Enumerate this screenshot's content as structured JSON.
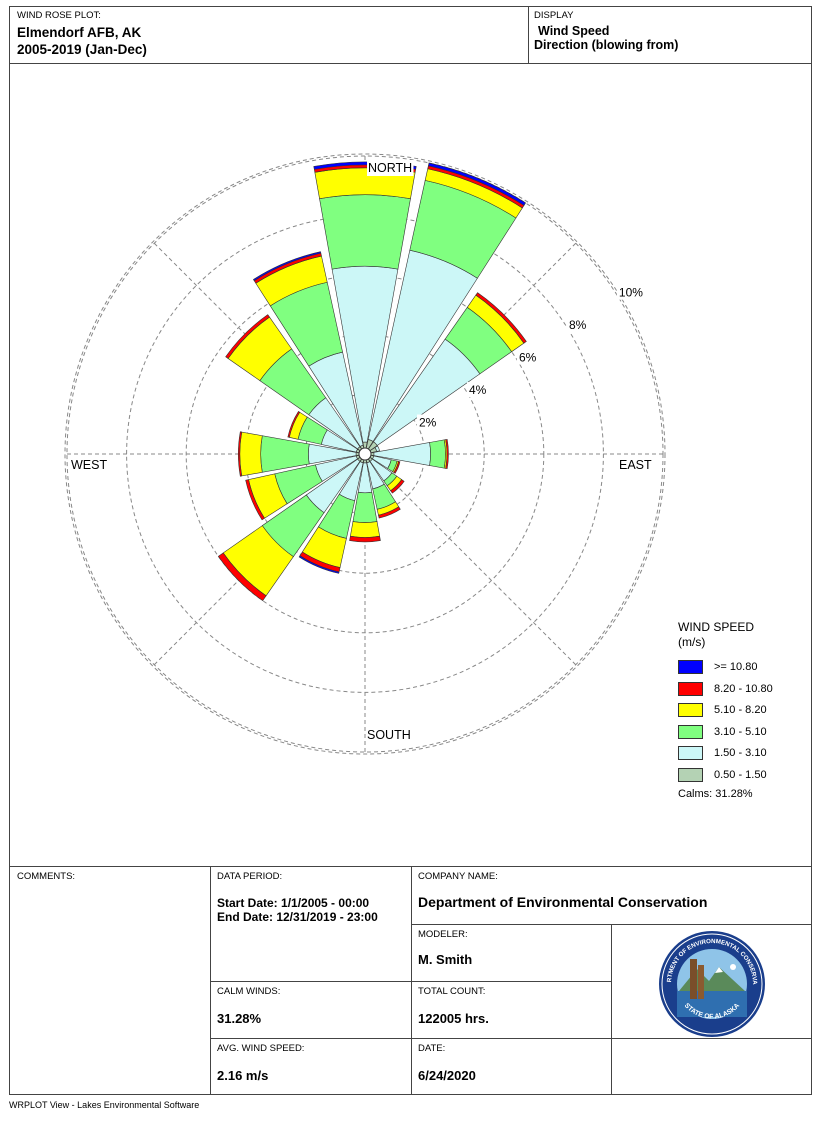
{
  "header": {
    "plot_label": "WIND ROSE PLOT:",
    "station": "Elmendorf AFB, AK",
    "period": "2005-2019 (Jan-Dec)",
    "display_label": "DISPLAY",
    "display_value1": "Wind Speed",
    "display_value2": "Direction (blowing from)"
  },
  "colors": {
    "c1": "#b4d2b4",
    "c2": "#ccf7f7",
    "c3": "#80ff80",
    "c4": "#ffff00",
    "c5": "#ff0000",
    "c6": "#0000ff"
  },
  "chart_data": {
    "type": "wind-rose",
    "units": "% frequency",
    "direction_labels": {
      "north": "NORTH",
      "east": "EAST",
      "south": "SOUTH",
      "west": "WEST"
    },
    "ring_labels": [
      "2%",
      "4%",
      "6%",
      "8%",
      "10%"
    ],
    "ring_values": [
      2,
      4,
      6,
      8,
      10
    ],
    "sectors": [
      {
        "dir": "N",
        "c1": 0.2,
        "c2": 5.9,
        "c3": 2.4,
        "c4": 0.9,
        "c5": 0.1,
        "c6": 0.1
      },
      {
        "dir": "NNE",
        "c1": 0.3,
        "c2": 6.5,
        "c3": 2.4,
        "c4": 0.4,
        "c5": 0.1,
        "c6": 0.1
      },
      {
        "dir": "NE",
        "c1": 0.3,
        "c2": 4.2,
        "c3": 1.3,
        "c4": 0.5,
        "c5": 0.1,
        "c6": 0.0
      },
      {
        "dir": "ENE",
        "c1": 0.2,
        "c2": 0.1,
        "c3": 0.0,
        "c4": 0.0,
        "c5": 0.0,
        "c6": 0.0
      },
      {
        "dir": "E",
        "c1": 0.1,
        "c2": 1.9,
        "c3": 0.5,
        "c4": 0.05,
        "c5": 0.05,
        "c6": 0.0
      },
      {
        "dir": "ESE",
        "c1": 0.1,
        "c2": 0.6,
        "c3": 0.2,
        "c4": 0.05,
        "c5": 0.05,
        "c6": 0.0
      },
      {
        "dir": "SE",
        "c1": 0.1,
        "c2": 0.8,
        "c3": 0.2,
        "c4": 0.2,
        "c5": 0.1,
        "c6": 0.0
      },
      {
        "dir": "SSE",
        "c1": 0.1,
        "c2": 0.9,
        "c3": 0.7,
        "c4": 0.2,
        "c5": 0.1,
        "c6": 0.0
      },
      {
        "dir": "S",
        "c1": 0.1,
        "c2": 1.0,
        "c3": 1.0,
        "c4": 0.5,
        "c5": 0.15,
        "c6": 0.0
      },
      {
        "dir": "SSW",
        "c1": 0.1,
        "c2": 1.3,
        "c3": 1.3,
        "c4": 1.0,
        "c5": 0.15,
        "c6": 0.05
      },
      {
        "dir": "SW",
        "c1": 0.1,
        "c2": 2.1,
        "c3": 1.8,
        "c4": 1.6,
        "c5": 0.2,
        "c6": 0.0
      },
      {
        "dir": "WSW",
        "c1": 0.1,
        "c2": 1.4,
        "c3": 1.4,
        "c4": 0.9,
        "c5": 0.1,
        "c6": 0.0
      },
      {
        "dir": "W",
        "c1": 0.1,
        "c2": 1.6,
        "c3": 1.6,
        "c4": 0.7,
        "c5": 0.05,
        "c6": 0.0
      },
      {
        "dir": "WNW",
        "c1": 0.1,
        "c2": 1.2,
        "c3": 0.8,
        "c4": 0.3,
        "c5": 0.05,
        "c6": 0.0
      },
      {
        "dir": "NW",
        "c1": 0.1,
        "c2": 2.0,
        "c3": 2.0,
        "c4": 1.3,
        "c5": 0.1,
        "c6": 0.0
      },
      {
        "dir": "NNW",
        "c1": 0.1,
        "c2": 3.2,
        "c3": 2.4,
        "c4": 0.9,
        "c5": 0.1,
        "c6": 0.05
      }
    ]
  },
  "legend": {
    "title1": "WIND SPEED",
    "title2": "(m/s)",
    "items": [
      {
        "label": ">= 10.80",
        "key": "c6"
      },
      {
        "label": "8.20 - 10.80",
        "key": "c5"
      },
      {
        "label": "5.10 - 8.20",
        "key": "c4"
      },
      {
        "label": "3.10 - 5.10",
        "key": "c3"
      },
      {
        "label": "1.50 - 3.10",
        "key": "c2"
      },
      {
        "label": "0.50 - 1.50",
        "key": "c1"
      }
    ],
    "calms": "Calms: 31.28%"
  },
  "footer": {
    "comments_label": "COMMENTS:",
    "data_period_label": "DATA PERIOD:",
    "start_date": "Start Date: 1/1/2005 - 00:00",
    "end_date": "End Date: 12/31/2019 - 23:00",
    "company_label": "COMPANY NAME:",
    "company_name": "Department of Environmental Conservation",
    "modeler_label": "MODELER:",
    "modeler_name": "M. Smith",
    "calm_winds_label": "CALM WINDS:",
    "calm_winds_value": "31.28%",
    "total_count_label": "TOTAL COUNT:",
    "total_count_value": "122005 hrs.",
    "avg_speed_label": "AVG. WIND SPEED:",
    "avg_speed_value": "2.16 m/s",
    "date_label": "DATE:",
    "date_value": "6/24/2020",
    "seal_text_top": "DEPARTMENT OF ENVIRONMENTAL CONSERVATION",
    "seal_text_bottom": "STATE OF ALASKA"
  },
  "software": "WRPLOT View - Lakes Environmental Software"
}
